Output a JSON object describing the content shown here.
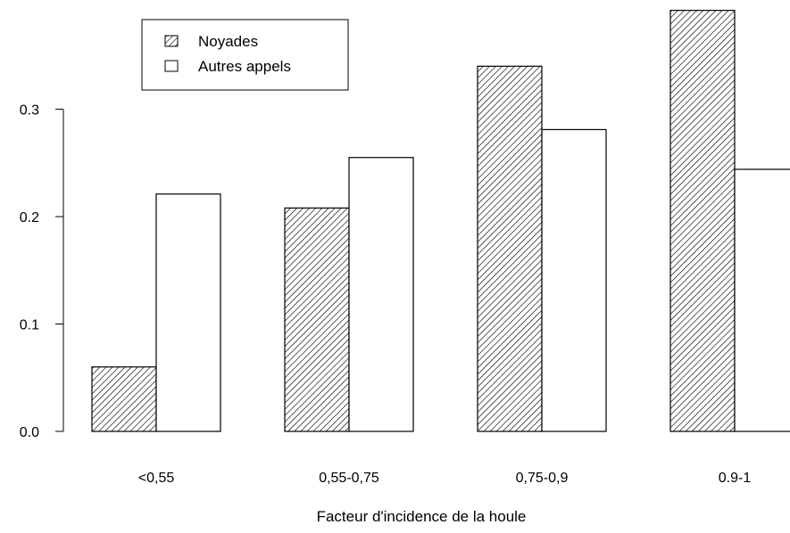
{
  "chart_data": {
    "type": "bar",
    "xlabel": "Facteur d'incidence de la houle",
    "ylabel": "",
    "categories": [
      "<0,55",
      "0,55-0,75",
      "0,75-0,9",
      "0.9-1"
    ],
    "series": [
      {
        "name": "Noyades",
        "values": [
          0.06,
          0.208,
          0.34,
          0.392
        ],
        "fill": "hatched"
      },
      {
        "name": "Autres appels",
        "values": [
          0.221,
          0.255,
          0.281,
          0.244
        ],
        "fill": "white"
      }
    ],
    "yticks": [
      0.0,
      0.1,
      0.2,
      0.3
    ],
    "ytick_labels": [
      "0.0",
      "0.1",
      "0.2",
      "0.3"
    ],
    "ylim": [
      0,
      0.392
    ],
    "grid": false,
    "legend_position": "top-left",
    "colors": {
      "bar_stroke": "#000000",
      "hatch": "#000000",
      "background": "#ffffff"
    }
  }
}
